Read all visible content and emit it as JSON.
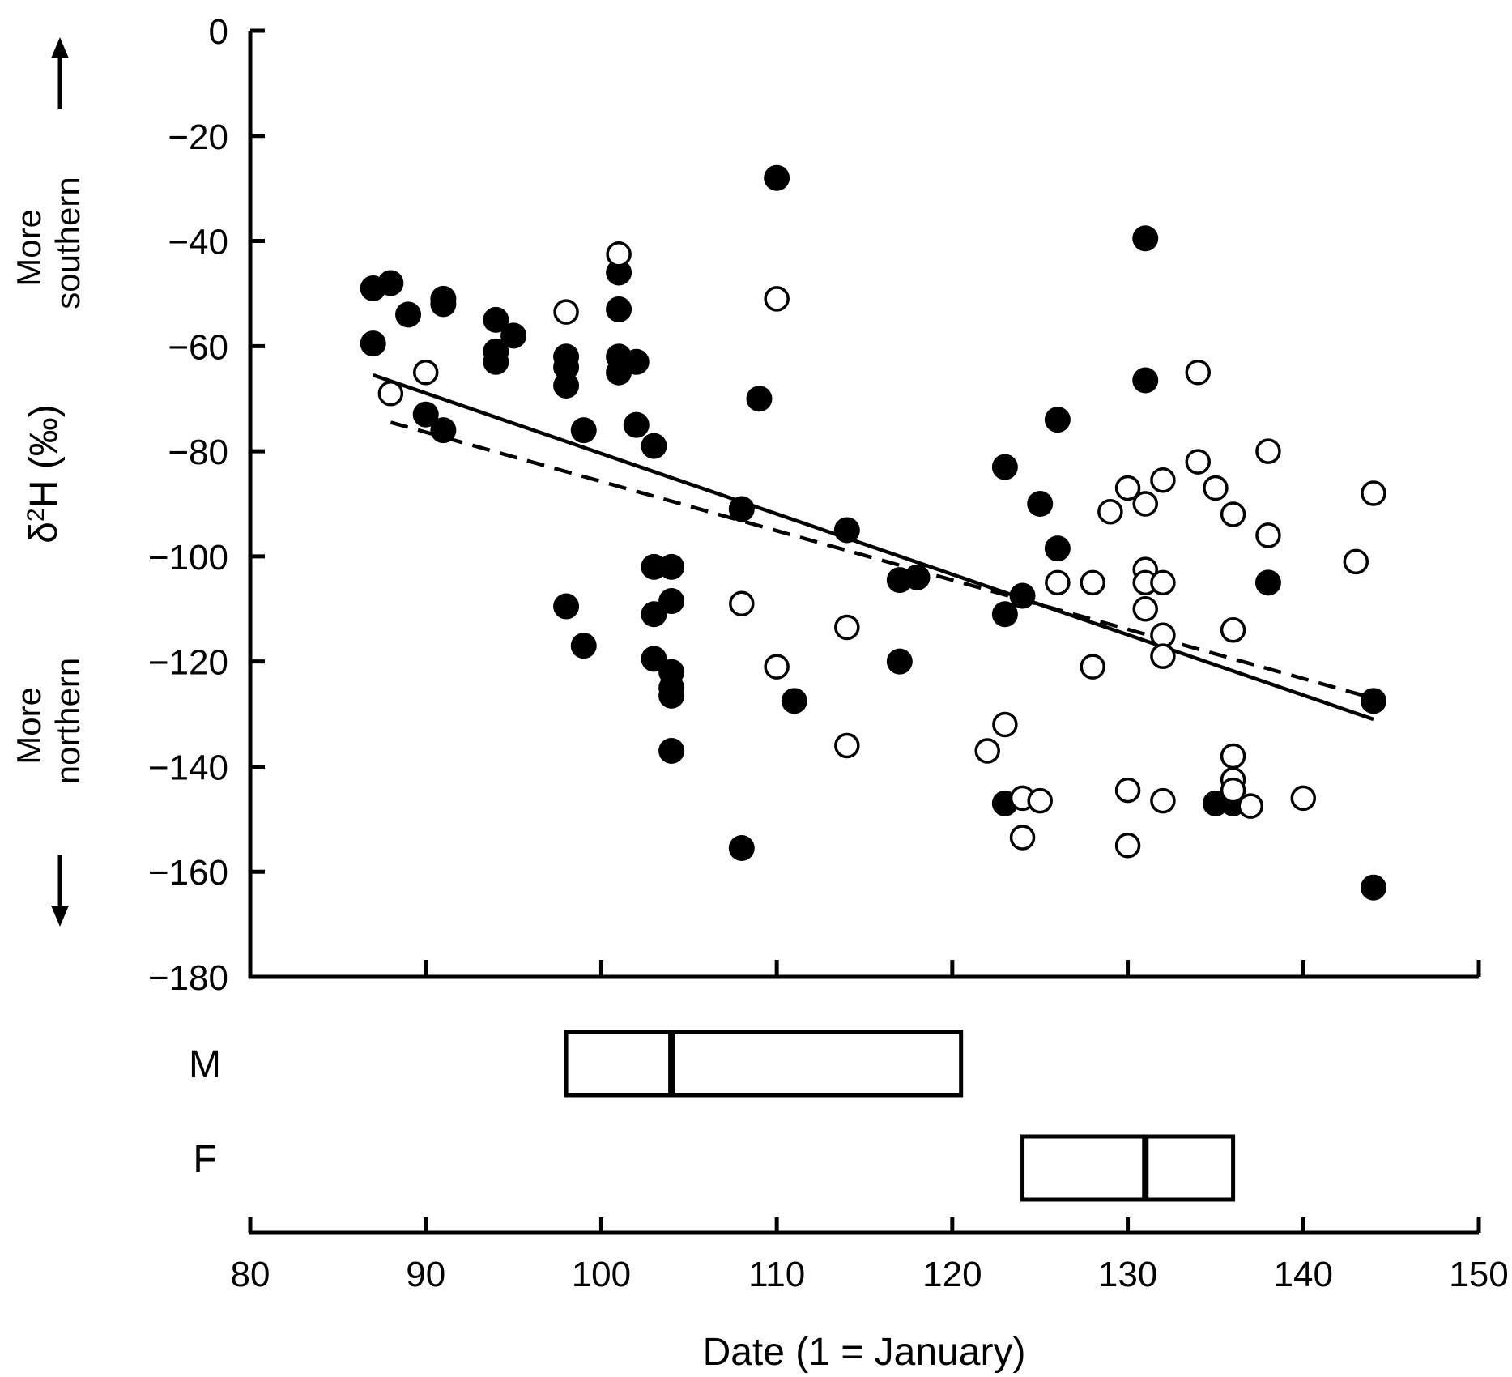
{
  "chart_data": {
    "type": "scatter",
    "title": "",
    "xlabel": "Date (1 = January)",
    "ylabel_symbol": "δ",
    "ylabel_sup": "2",
    "ylabel_rest": "H (‰)",
    "xlim": [
      80,
      150
    ],
    "ylim": [
      -180,
      0
    ],
    "xticks": [
      80,
      90,
      100,
      110,
      120,
      130,
      140,
      150
    ],
    "yticks": [
      0,
      -20,
      -40,
      -60,
      -80,
      -100,
      -120,
      -140,
      -160,
      -180
    ],
    "ytick_labels": [
      "0",
      "−20",
      "−40",
      "−60",
      "−80",
      "−100",
      "−120",
      "−140",
      "−160",
      "−180"
    ],
    "annotations": {
      "south_line1": "More",
      "south_line2": "southern",
      "north_line1": "More",
      "north_line2": "northern"
    },
    "series": [
      {
        "marker": "filled-circle",
        "color": "#000000",
        "points": [
          [
            87,
            -49
          ],
          [
            88,
            -48
          ],
          [
            87,
            -59.5
          ],
          [
            89,
            -54
          ],
          [
            91,
            -51
          ],
          [
            91,
            -52
          ],
          [
            90,
            -73
          ],
          [
            91,
            -76
          ],
          [
            94,
            -55
          ],
          [
            94,
            -61
          ],
          [
            94,
            -63
          ],
          [
            95,
            -58
          ],
          [
            98,
            -62
          ],
          [
            98,
            -64
          ],
          [
            98,
            -67.5
          ],
          [
            99,
            -76
          ],
          [
            101,
            -46
          ],
          [
            101,
            -53
          ],
          [
            101,
            -62
          ],
          [
            101,
            -65
          ],
          [
            102,
            -63
          ],
          [
            102,
            -75
          ],
          [
            103,
            -79
          ],
          [
            110,
            -28
          ],
          [
            109,
            -70
          ],
          [
            108,
            -91
          ],
          [
            114,
            -95
          ],
          [
            98,
            -109.5
          ],
          [
            99,
            -117
          ],
          [
            103,
            -102
          ],
          [
            104,
            -102
          ],
          [
            103,
            -111
          ],
          [
            104,
            -108.5
          ],
          [
            103,
            -119.5
          ],
          [
            104,
            -122
          ],
          [
            104,
            -125
          ],
          [
            104,
            -126.5
          ],
          [
            104,
            -137
          ],
          [
            111,
            -127.5
          ],
          [
            108,
            -155.5
          ],
          [
            117,
            -104.5
          ],
          [
            118,
            -104
          ],
          [
            117,
            -120
          ],
          [
            123,
            -83
          ],
          [
            125,
            -90
          ],
          [
            126,
            -74
          ],
          [
            126,
            -98.5
          ],
          [
            124,
            -107.5
          ],
          [
            123,
            -111
          ],
          [
            123,
            -147
          ],
          [
            131,
            -39.5
          ],
          [
            131,
            -66.5
          ],
          [
            138,
            -105
          ],
          [
            135,
            -147
          ],
          [
            136,
            -147
          ],
          [
            144,
            -127.5
          ],
          [
            144,
            -163
          ]
        ]
      },
      {
        "marker": "open-circle",
        "color": "#000000",
        "points": [
          [
            88,
            -69
          ],
          [
            90,
            -65
          ],
          [
            98,
            -53.5
          ],
          [
            101,
            -42.5
          ],
          [
            110,
            -51
          ],
          [
            108,
            -109
          ],
          [
            110,
            -121
          ],
          [
            114,
            -113.5
          ],
          [
            114,
            -136
          ],
          [
            122,
            -137
          ],
          [
            123,
            -132
          ],
          [
            124,
            -146
          ],
          [
            124,
            -153.5
          ],
          [
            125,
            -146.5
          ],
          [
            126,
            -105
          ],
          [
            128,
            -105
          ],
          [
            128,
            -121
          ],
          [
            129,
            -91.5
          ],
          [
            130,
            -87
          ],
          [
            130,
            -144.5
          ],
          [
            130,
            -155
          ],
          [
            131,
            -90
          ],
          [
            131,
            -102.5
          ],
          [
            131,
            -105
          ],
          [
            131,
            -110
          ],
          [
            132,
            -85.5
          ],
          [
            132,
            -105
          ],
          [
            132,
            -115
          ],
          [
            132,
            -119
          ],
          [
            132,
            -146.5
          ],
          [
            134,
            -65
          ],
          [
            134,
            -82
          ],
          [
            135,
            -87
          ],
          [
            136,
            -92
          ],
          [
            136,
            -114
          ],
          [
            136,
            -138
          ],
          [
            136,
            -142.5
          ],
          [
            136,
            -144.5
          ],
          [
            137,
            -147.5
          ],
          [
            138,
            -80
          ],
          [
            138,
            -96
          ],
          [
            140,
            -146
          ],
          [
            143,
            -101
          ],
          [
            144,
            -88
          ]
        ]
      }
    ],
    "fit_lines": [
      {
        "style": "solid",
        "x": [
          87,
          144
        ],
        "y": [
          -65.5,
          -131
        ]
      },
      {
        "style": "dashed",
        "x": [
          88,
          144
        ],
        "y": [
          -74.5,
          -127
        ]
      }
    ],
    "boxes": [
      {
        "label": "M",
        "q1": 98,
        "median": 104,
        "q3": 120.5
      },
      {
        "label": "F",
        "q1": 124,
        "median": 131,
        "q3": 136
      }
    ]
  }
}
